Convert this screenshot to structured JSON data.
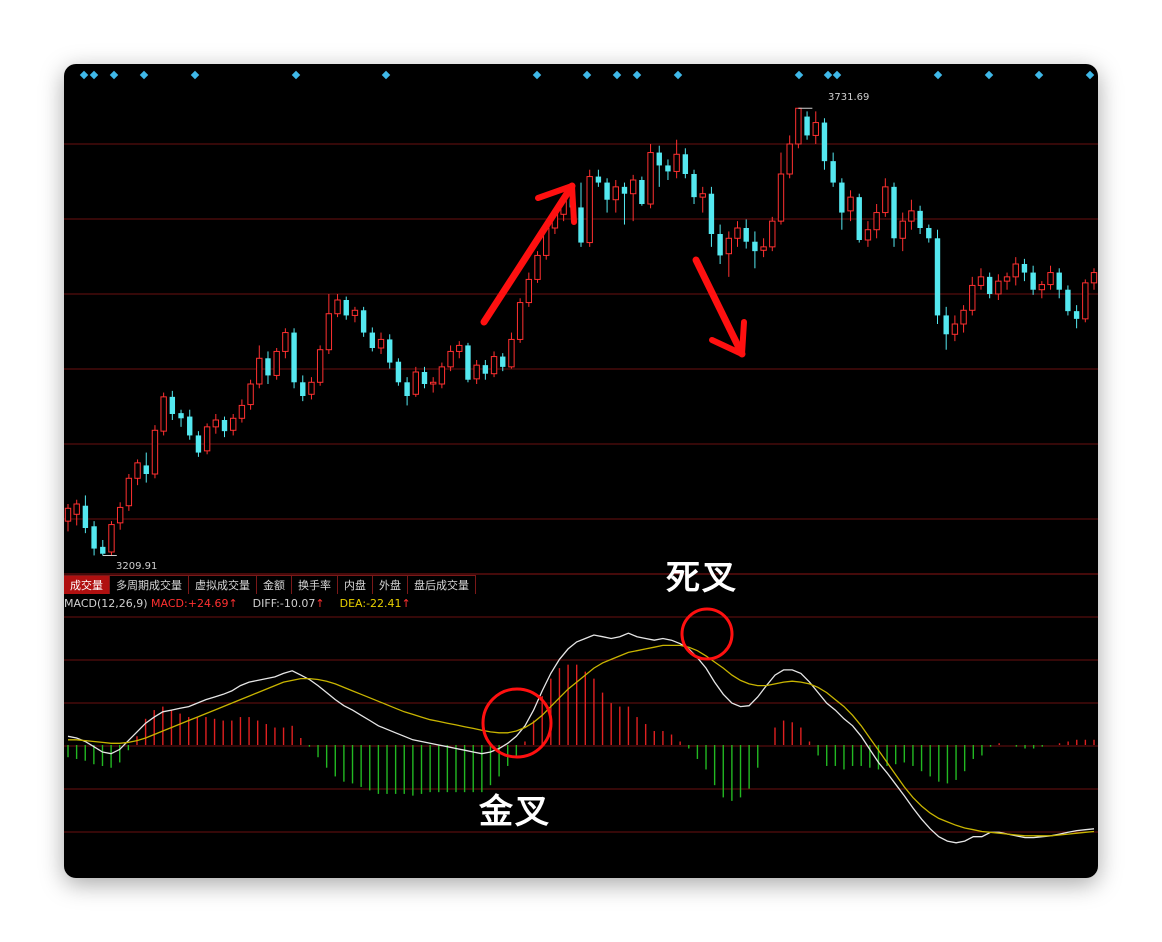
{
  "tabs": [
    "成交量",
    "多周期成交量",
    "虚拟成交量",
    "金额",
    "换手率",
    "内盘",
    "外盘",
    "盘后成交量"
  ],
  "indicator": {
    "name": "MACD(12,26,9)",
    "macd_label": "MACD:",
    "macd_value": "+24.69",
    "diff_label": "DIFF:",
    "diff_value": "-10.07",
    "dea_label": "DEA:",
    "dea_value": "-22.41",
    "up_arrow": "↑"
  },
  "annotations": {
    "death_cross": "死叉",
    "golden_cross": "金叉"
  },
  "colors": {
    "up": "#ff3030",
    "down": "#54e8f0",
    "grid": "#6a0f0f",
    "diff_line": "#e6e6e6",
    "dea_line": "#c8b400",
    "hist_pos": "#e02020",
    "hist_neg": "#22b822",
    "annotation": "#ff1010",
    "signal_dot": "#3fb8e8"
  },
  "chart_data": [
    {
      "type": "candlestick",
      "price_high_label": "3731.69",
      "price_low_label": "3209.91",
      "ylim": [
        3200,
        3760
      ],
      "candles": [
        [
          3250,
          3265,
          3238,
          3270
        ],
        [
          3258,
          3270,
          3245,
          3275
        ],
        [
          3268,
          3242,
          3236,
          3280
        ],
        [
          3244,
          3218,
          3210,
          3250
        ],
        [
          3220,
          3212,
          3209.91,
          3228
        ],
        [
          3214,
          3246,
          3210,
          3250
        ],
        [
          3248,
          3266,
          3240,
          3272
        ],
        [
          3268,
          3300,
          3262,
          3305
        ],
        [
          3300,
          3318,
          3292,
          3322
        ],
        [
          3315,
          3305,
          3295,
          3330
        ],
        [
          3305,
          3356,
          3300,
          3362
        ],
        [
          3355,
          3395,
          3350,
          3400
        ],
        [
          3395,
          3375,
          3368,
          3402
        ],
        [
          3376,
          3370,
          3360,
          3380
        ],
        [
          3372,
          3350,
          3345,
          3380
        ],
        [
          3350,
          3330,
          3325,
          3355
        ],
        [
          3332,
          3360,
          3328,
          3364
        ],
        [
          3360,
          3368,
          3352,
          3375
        ],
        [
          3368,
          3355,
          3348,
          3372
        ],
        [
          3356,
          3370,
          3350,
          3375
        ],
        [
          3370,
          3385,
          3365,
          3392
        ],
        [
          3386,
          3410,
          3380,
          3415
        ],
        [
          3410,
          3440,
          3405,
          3455
        ],
        [
          3440,
          3420,
          3410,
          3448
        ],
        [
          3420,
          3448,
          3415,
          3452
        ],
        [
          3448,
          3470,
          3440,
          3475
        ],
        [
          3470,
          3412,
          3405,
          3475
        ],
        [
          3412,
          3396,
          3390,
          3420
        ],
        [
          3398,
          3412,
          3392,
          3418
        ],
        [
          3412,
          3450,
          3408,
          3455
        ],
        [
          3450,
          3492,
          3445,
          3515
        ],
        [
          3492,
          3508,
          3488,
          3515
        ],
        [
          3508,
          3490,
          3485,
          3512
        ],
        [
          3490,
          3496,
          3482,
          3500
        ],
        [
          3496,
          3470,
          3465,
          3500
        ],
        [
          3470,
          3452,
          3448,
          3476
        ],
        [
          3452,
          3462,
          3445,
          3470
        ],
        [
          3462,
          3435,
          3428,
          3468
        ],
        [
          3436,
          3412,
          3408,
          3440
        ],
        [
          3412,
          3396,
          3385,
          3418
        ],
        [
          3398,
          3424,
          3395,
          3430
        ],
        [
          3424,
          3410,
          3405,
          3430
        ],
        [
          3410,
          3412,
          3400,
          3418
        ],
        [
          3410,
          3430,
          3405,
          3435
        ],
        [
          3430,
          3448,
          3425,
          3455
        ],
        [
          3448,
          3455,
          3440,
          3460
        ],
        [
          3455,
          3415,
          3412,
          3458
        ],
        [
          3416,
          3432,
          3410,
          3438
        ],
        [
          3432,
          3422,
          3415,
          3438
        ],
        [
          3422,
          3442,
          3418,
          3448
        ],
        [
          3442,
          3430,
          3425,
          3446
        ],
        [
          3430,
          3462,
          3428,
          3470
        ],
        [
          3462,
          3505,
          3458,
          3510
        ],
        [
          3505,
          3532,
          3500,
          3540
        ],
        [
          3532,
          3560,
          3528,
          3565
        ],
        [
          3560,
          3592,
          3555,
          3600
        ],
        [
          3592,
          3608,
          3585,
          3612
        ],
        [
          3608,
          3626,
          3600,
          3630
        ],
        [
          3626,
          3616,
          3610,
          3640
        ],
        [
          3616,
          3575,
          3570,
          3645
        ],
        [
          3575,
          3652,
          3570,
          3660
        ],
        [
          3652,
          3645,
          3640,
          3660
        ],
        [
          3645,
          3625,
          3610,
          3650
        ],
        [
          3625,
          3640,
          3610,
          3648
        ],
        [
          3640,
          3632,
          3596,
          3645
        ],
        [
          3632,
          3648,
          3600,
          3654
        ],
        [
          3648,
          3620,
          3618,
          3652
        ],
        [
          3620,
          3680,
          3615,
          3690
        ],
        [
          3680,
          3665,
          3640,
          3688
        ],
        [
          3665,
          3658,
          3648,
          3672
        ],
        [
          3658,
          3678,
          3650,
          3695
        ],
        [
          3678,
          3655,
          3650,
          3685
        ],
        [
          3655,
          3628,
          3620,
          3660
        ],
        [
          3628,
          3632,
          3610,
          3640
        ],
        [
          3632,
          3585,
          3570,
          3640
        ],
        [
          3585,
          3560,
          3550,
          3596
        ],
        [
          3562,
          3580,
          3535,
          3588
        ],
        [
          3580,
          3592,
          3570,
          3600
        ],
        [
          3592,
          3576,
          3568,
          3602
        ],
        [
          3576,
          3565,
          3545,
          3588
        ],
        [
          3566,
          3570,
          3558,
          3580
        ],
        [
          3570,
          3600,
          3565,
          3605
        ],
        [
          3600,
          3655,
          3596,
          3680
        ],
        [
          3655,
          3690,
          3650,
          3700
        ],
        [
          3690,
          3731.69,
          3685,
          3731.69
        ],
        [
          3722,
          3700,
          3695,
          3728
        ],
        [
          3700,
          3715,
          3690,
          3728
        ],
        [
          3715,
          3670,
          3660,
          3720
        ],
        [
          3670,
          3645,
          3640,
          3680
        ],
        [
          3645,
          3610,
          3590,
          3650
        ],
        [
          3612,
          3628,
          3600,
          3636
        ],
        [
          3628,
          3578,
          3575,
          3632
        ],
        [
          3578,
          3590,
          3570,
          3600
        ],
        [
          3590,
          3610,
          3580,
          3620
        ],
        [
          3610,
          3640,
          3605,
          3650
        ],
        [
          3640,
          3580,
          3570,
          3645
        ],
        [
          3580,
          3600,
          3565,
          3610
        ],
        [
          3600,
          3612,
          3590,
          3625
        ],
        [
          3612,
          3592,
          3585,
          3618
        ],
        [
          3592,
          3580,
          3575,
          3596
        ],
        [
          3580,
          3490,
          3480,
          3590
        ],
        [
          3490,
          3468,
          3450,
          3500
        ],
        [
          3468,
          3480,
          3460,
          3490
        ],
        [
          3480,
          3496,
          3470,
          3502
        ],
        [
          3496,
          3525,
          3490,
          3535
        ],
        [
          3525,
          3535,
          3520,
          3545
        ],
        [
          3535,
          3515,
          3510,
          3540
        ],
        [
          3515,
          3530,
          3508,
          3538
        ],
        [
          3530,
          3535,
          3520,
          3540
        ],
        [
          3535,
          3550,
          3525,
          3558
        ],
        [
          3550,
          3540,
          3530,
          3556
        ],
        [
          3540,
          3520,
          3514,
          3548
        ],
        [
          3520,
          3526,
          3510,
          3530
        ],
        [
          3526,
          3540,
          3520,
          3548
        ],
        [
          3540,
          3520,
          3510,
          3545
        ],
        [
          3520,
          3495,
          3490,
          3525
        ],
        [
          3495,
          3486,
          3475,
          3502
        ],
        [
          3486,
          3528,
          3482,
          3532
        ],
        [
          3528,
          3540,
          3520,
          3545
        ]
      ]
    },
    {
      "type": "macd",
      "ylim": [
        -150,
        150
      ],
      "diff": [
        10,
        8,
        4,
        -2,
        -8,
        -10,
        -5,
        5,
        15,
        25,
        32,
        38,
        40,
        42,
        44,
        48,
        52,
        55,
        58,
        62,
        68,
        72,
        74,
        76,
        78,
        82,
        85,
        80,
        75,
        68,
        60,
        52,
        45,
        40,
        34,
        28,
        22,
        18,
        14,
        10,
        6,
        4,
        2,
        0,
        -2,
        -4,
        -6,
        -8,
        -10,
        -8,
        -4,
        2,
        10,
        22,
        40,
        62,
        82,
        98,
        110,
        118,
        122,
        126,
        124,
        122,
        124,
        128,
        124,
        122,
        120,
        122,
        120,
        116,
        110,
        100,
        88,
        72,
        58,
        48,
        44,
        45,
        55,
        68,
        80,
        86,
        86,
        82,
        72,
        60,
        48,
        40,
        30,
        22,
        10,
        -5,
        -20,
        -32,
        -45,
        -58,
        -72,
        -85,
        -96,
        -105,
        -110,
        -112,
        -110,
        -105,
        -105,
        -100,
        -100,
        -102,
        -104,
        -106,
        -106,
        -105,
        -104,
        -102,
        -100,
        -98,
        -97,
        -96
      ],
      "dea": [
        6,
        6,
        5,
        4,
        3,
        2,
        2,
        3,
        5,
        8,
        12,
        16,
        20,
        24,
        28,
        32,
        36,
        40,
        44,
        48,
        52,
        56,
        60,
        64,
        68,
        72,
        74,
        76,
        76,
        75,
        73,
        70,
        66,
        62,
        58,
        54,
        50,
        46,
        42,
        38,
        35,
        32,
        29,
        27,
        25,
        23,
        21,
        19,
        17,
        15,
        14,
        14,
        16,
        20,
        26,
        34,
        44,
        54,
        64,
        72,
        80,
        88,
        94,
        98,
        102,
        106,
        108,
        110,
        112,
        114,
        114,
        114,
        112,
        108,
        102,
        95,
        88,
        80,
        74,
        70,
        68,
        68,
        70,
        72,
        73,
        72,
        70,
        66,
        60,
        52,
        44,
        34,
        22,
        8,
        -6,
        -20,
        -34,
        -48,
        -60,
        -70,
        -78,
        -84,
        -88,
        -92,
        -95,
        -97,
        -99,
        -100,
        -101,
        -102,
        -103,
        -104,
        -104,
        -104,
        -104,
        -103,
        -102,
        -101,
        -100,
        -99
      ],
      "histogram": [
        -14,
        -16,
        -18,
        -22,
        -24,
        -26,
        -20,
        -6,
        10,
        30,
        40,
        44,
        40,
        36,
        32,
        32,
        32,
        30,
        28,
        28,
        32,
        32,
        28,
        24,
        20,
        20,
        22,
        8,
        -2,
        -14,
        -26,
        -36,
        -42,
        -44,
        -48,
        -52,
        -56,
        -56,
        -56,
        -56,
        -58,
        -56,
        -54,
        -54,
        -54,
        -54,
        -54,
        -54,
        -54,
        -46,
        -36,
        -24,
        -12,
        4,
        28,
        56,
        76,
        88,
        92,
        92,
        84,
        76,
        60,
        48,
        44,
        44,
        32,
        24,
        16,
        16,
        12,
        4,
        -4,
        -16,
        -28,
        -46,
        -60,
        -64,
        -60,
        -50,
        -26,
        0,
        20,
        28,
        26,
        20,
        4,
        -12,
        -24,
        -24,
        -28,
        -24,
        -24,
        -26,
        -28,
        -24,
        -22,
        -20,
        -24,
        -30,
        -36,
        -42,
        -44,
        -40,
        -30,
        -16,
        -12,
        -2,
        2,
        0,
        -2,
        -4,
        -4,
        -2,
        0,
        2,
        4,
        6,
        6,
        6
      ]
    }
  ]
}
